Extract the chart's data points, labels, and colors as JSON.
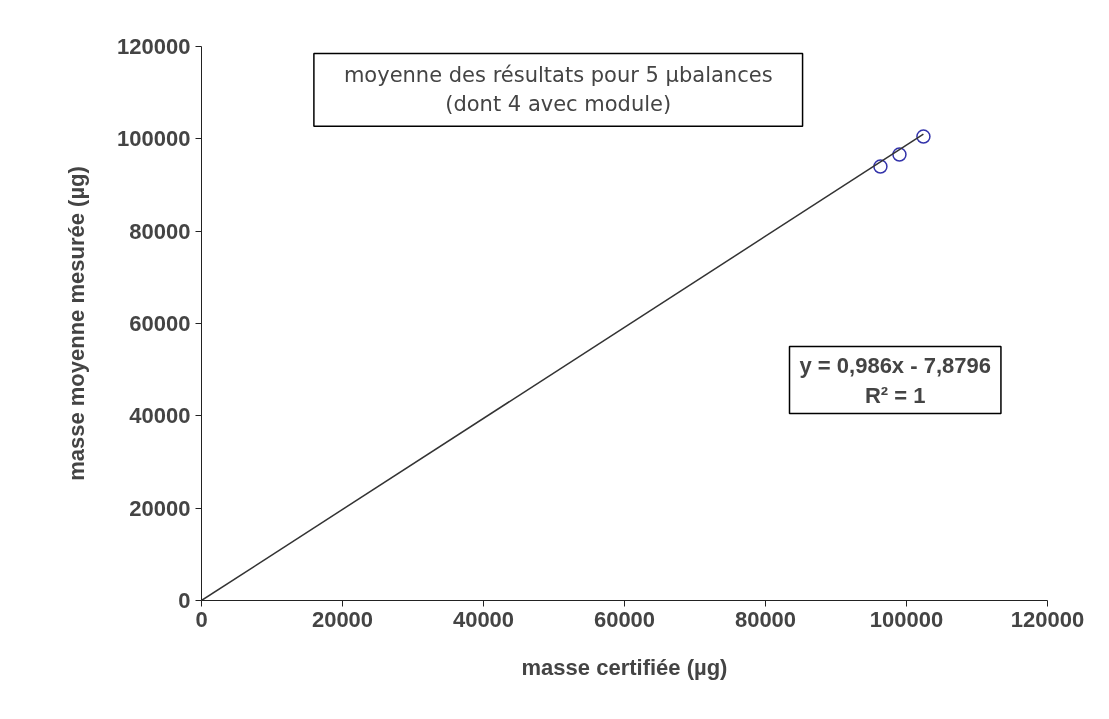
{
  "chart_data": {
    "type": "scatter",
    "xlabel": "masse certifiée (µg)",
    "ylabel": "masse moyenne mesurée (µg)",
    "annotations": [
      "moyenne des résultats pour 5 µbalances\n(dont 4 avec module)",
      "y = 0,986x - 7,8796\nR² = 1"
    ],
    "xlim": [
      0,
      120000
    ],
    "ylim": [
      0,
      120000
    ],
    "xticks": [
      0,
      20000,
      40000,
      60000,
      80000,
      100000,
      120000
    ],
    "yticks": [
      0,
      20000,
      40000,
      60000,
      80000,
      100000,
      120000
    ],
    "grid": false,
    "marker": "circle",
    "series": [
      {
        "color": "#3333aa",
        "x": [
          96300,
          99000,
          102400
        ],
        "values": [
          94000,
          96600,
          100500
        ]
      },
      {
        "type": "line",
        "color": "#333333",
        "line_style": "solid",
        "marker": "none",
        "x": [
          0,
          102400
        ],
        "values": [
          0,
          101000
        ]
      }
    ]
  }
}
